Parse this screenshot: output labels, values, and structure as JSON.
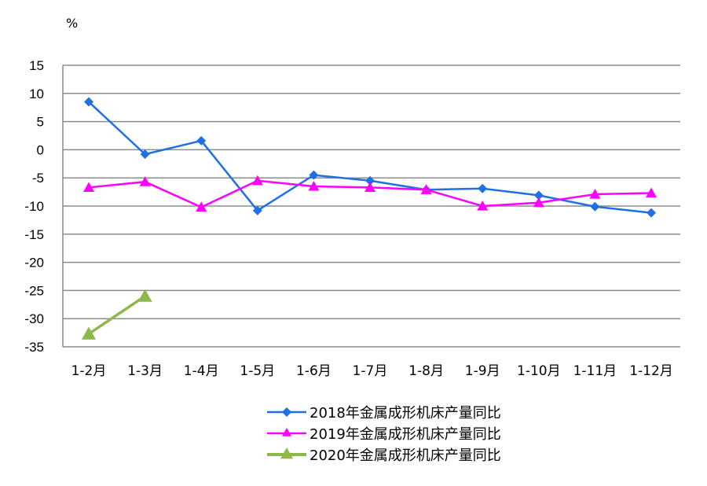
{
  "chart_data": {
    "type": "line",
    "title": "",
    "unit_label": "%",
    "xlabel": "",
    "ylabel": "%",
    "ylim": [
      -35,
      15
    ],
    "yticks": [
      15,
      10,
      5,
      0,
      -5,
      -10,
      -15,
      -20,
      -25,
      -30,
      -35
    ],
    "grid": true,
    "legend_position": "bottom",
    "categories": [
      "1-2月",
      "1-3月",
      "1-4月",
      "1-5月",
      "1-6月",
      "1-7月",
      "1-8月",
      "1-9月",
      "1-10月",
      "1-11月",
      "1-12月"
    ],
    "series": [
      {
        "name": "2018年金属成形机床产量同比",
        "color": "#1f6fe5",
        "marker": "diamond",
        "values": [
          8.5,
          -0.8,
          1.6,
          -10.8,
          -4.5,
          -5.5,
          -7.1,
          -6.9,
          -8.1,
          -10.1,
          -11.2
        ]
      },
      {
        "name": "2019年金属成形机床产量同比",
        "color": "#ff00ff",
        "marker": "triangle",
        "values": [
          -6.7,
          -5.7,
          -10.2,
          -5.5,
          -6.5,
          -6.7,
          -7.1,
          -10.0,
          -9.4,
          -7.9,
          -7.7
        ]
      },
      {
        "name": "2020年金属成形机床产量同比",
        "color": "#8db84a",
        "marker": "triangle",
        "values": [
          -32.7,
          -26.0,
          null,
          null,
          null,
          null,
          null,
          null,
          null,
          null,
          null
        ]
      }
    ]
  },
  "colors": {
    "grid": "#8c8c8c",
    "axis": "#8c8c8c",
    "text": "#000000"
  }
}
